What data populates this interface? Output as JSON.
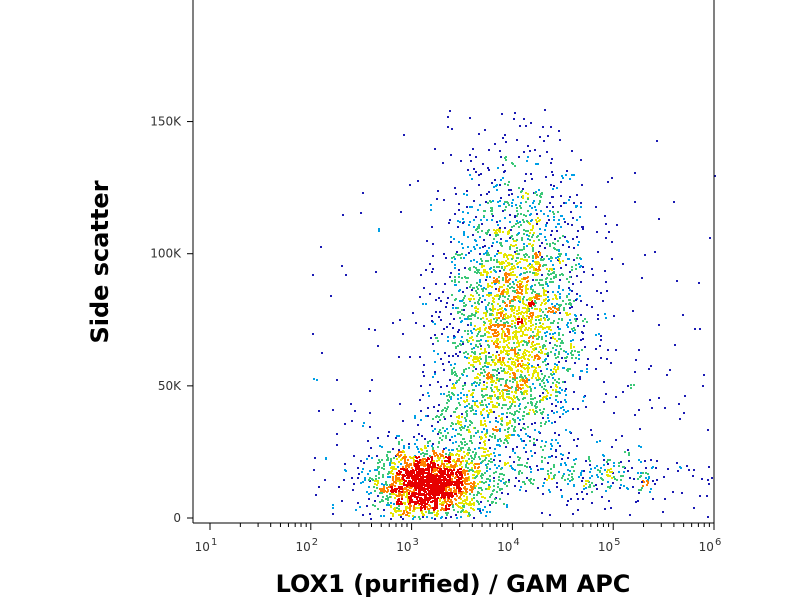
{
  "chart_data": {
    "type": "scatter",
    "subtype": "flow-cytometry-density-dot-plot",
    "title": "",
    "xlabel": "LOX1 (purified) / GAM APC",
    "ylabel": "Side scatter",
    "x_scale": "log",
    "xlim": [
      10,
      1000000
    ],
    "x_ticks": [
      {
        "value": 10,
        "base": "10",
        "exp": "1"
      },
      {
        "value": 100,
        "base": "10",
        "exp": "2"
      },
      {
        "value": 1000,
        "base": "10",
        "exp": "3"
      },
      {
        "value": 10000,
        "base": "10",
        "exp": "4"
      },
      {
        "value": 100000,
        "base": "10",
        "exp": "5"
      },
      {
        "value": 1000000,
        "base": "10",
        "exp": "6"
      }
    ],
    "y_scale": "linear",
    "ylim": [
      0,
      196000
    ],
    "y_ticks": [
      {
        "value": 0,
        "label": "0"
      },
      {
        "value": 50000,
        "label": "50K"
      },
      {
        "value": 100000,
        "label": "100K"
      },
      {
        "value": 150000,
        "label": "150K"
      }
    ],
    "grid": false,
    "legend": "none",
    "color_scale": [
      "#1a1ab4",
      "#00a0e6",
      "#3cc878",
      "#e6e600",
      "#ff8000",
      "#e60000"
    ],
    "populations": [
      {
        "name": "dense low-SSC cluster",
        "x_center": 1500,
        "y_center": 13000,
        "x_log_sd": 0.28,
        "y_sd": 6500,
        "weight": 0.36
      },
      {
        "name": "main SSC-high population",
        "x_center": 10000,
        "y_center": 70000,
        "x_log_sd": 0.33,
        "y_sd": 22000,
        "weight": 0.42
      },
      {
        "name": "upper tail",
        "x_center": 12000,
        "y_center": 110000,
        "x_log_sd": 0.35,
        "y_sd": 20000,
        "weight": 0.1
      },
      {
        "name": "bridging events",
        "x_center": 4000,
        "y_center": 35000,
        "x_log_sd": 0.3,
        "y_sd": 12000,
        "weight": 0.07
      },
      {
        "name": "low-SSC high-fluorescence tail",
        "x_center": 60000,
        "y_center": 16000,
        "x_log_sd": 0.45,
        "y_sd": 5000,
        "weight": 0.05
      }
    ]
  }
}
